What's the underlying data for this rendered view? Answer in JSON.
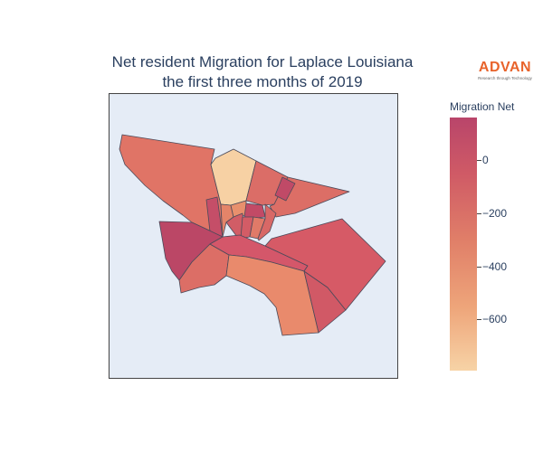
{
  "title": {
    "line1": "Net resident Migration for Laplace Louisiana",
    "line2": "the first three months of 2019"
  },
  "logo": {
    "word": "ADVAN",
    "tagline": "Research through Technology",
    "color": "#e8632b"
  },
  "colorbar": {
    "title": "Migration Net",
    "ticks": [
      "0",
      "−200",
      "−400",
      "−600"
    ],
    "scale": [
      "#b9456a",
      "#cf5a66",
      "#e07e68",
      "#eea57a",
      "#f7d3a6"
    ]
  },
  "map": {
    "background": "#e5ecf6",
    "region_count": 18
  }
}
